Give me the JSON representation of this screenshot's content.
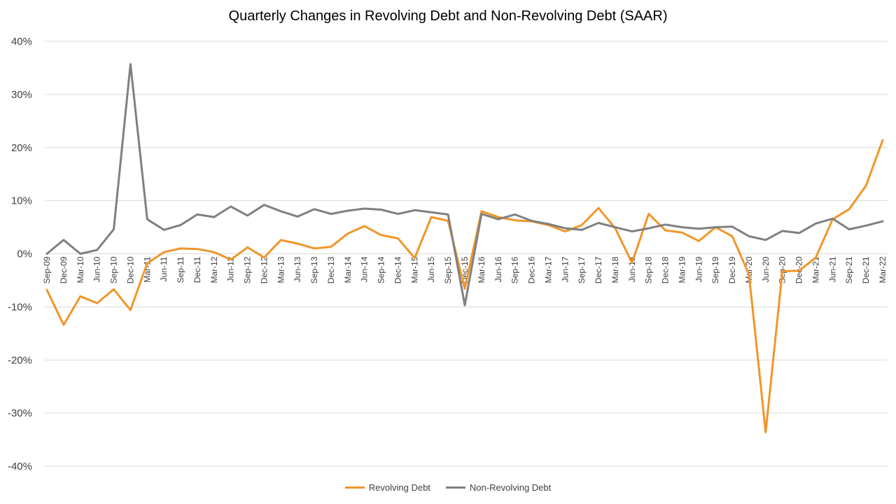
{
  "chart_data": {
    "type": "line",
    "title": "Quarterly Changes in Revolving Debt and Non-Revolving Debt (SAAR)",
    "xlabel": "",
    "ylabel": "",
    "ylim": [
      -0.4,
      0.4
    ],
    "y_ticks": [
      0.4,
      0.3,
      0.2,
      0.1,
      0,
      -0.1,
      -0.2,
      -0.3,
      -0.4
    ],
    "y_tick_labels": [
      "40%",
      "30%",
      "20%",
      "10%",
      "0%",
      "-10%",
      "-20%",
      "-30%",
      "-40%"
    ],
    "grid": true,
    "legend_position": "bottom",
    "categories": [
      "Sep-09",
      "Dec-09",
      "Mar-10",
      "Jun-10",
      "Sep-10",
      "Dec-10",
      "Mar-11",
      "Jun-11",
      "Sep-11",
      "Dec-11",
      "Mar-12",
      "Jun-12",
      "Sep-12",
      "Dec-12",
      "Mar-13",
      "Jun-13",
      "Sep-13",
      "Dec-13",
      "Mar-14",
      "Jun-14",
      "Sep-14",
      "Dec-14",
      "Mar-15",
      "Jun-15",
      "Sep-15",
      "Dec-15",
      "Mar-16",
      "Jun-16",
      "Sep-16",
      "Dec-16",
      "Mar-17",
      "Jun-17",
      "Sep-17",
      "Dec-17",
      "Mar-18",
      "Jun-18",
      "Sep-18",
      "Dec-18",
      "Mar-19",
      "Jun-19",
      "Sep-19",
      "Dec-19",
      "Mar-20",
      "Jun-20",
      "Sep-20",
      "Dec-20",
      "Mar-21",
      "Jun-21",
      "Sep-21",
      "Dec-21",
      "Mar-22"
    ],
    "series": [
      {
        "name": "Revolving Debt",
        "color": "#F0962A",
        "values": [
          -0.068,
          -0.134,
          -0.08,
          -0.093,
          -0.067,
          -0.106,
          -0.018,
          0.003,
          0.01,
          0.009,
          0.003,
          -0.011,
          0.012,
          -0.007,
          0.026,
          0.019,
          0.01,
          0.013,
          0.038,
          0.052,
          0.035,
          0.029,
          -0.008,
          0.069,
          0.062,
          -0.066,
          0.08,
          0.069,
          0.063,
          0.061,
          0.054,
          0.042,
          0.054,
          0.086,
          0.048,
          -0.017,
          0.075,
          0.044,
          0.04,
          0.024,
          0.05,
          0.033,
          -0.039,
          -0.336,
          -0.033,
          -0.032,
          -0.007,
          0.065,
          0.084,
          0.128,
          0.214
        ]
      },
      {
        "name": "Non-Revolving Debt",
        "color": "#808080",
        "values": [
          0.0,
          0.026,
          0.0,
          0.007,
          0.046,
          0.357,
          0.065,
          0.045,
          0.054,
          0.074,
          0.069,
          0.089,
          0.072,
          0.092,
          0.08,
          0.07,
          0.084,
          0.075,
          0.081,
          0.085,
          0.083,
          0.075,
          0.082,
          0.078,
          0.074,
          -0.097,
          0.075,
          0.065,
          0.074,
          0.062,
          0.056,
          0.048,
          0.045,
          0.058,
          0.05,
          0.042,
          0.048,
          0.055,
          0.05,
          0.047,
          0.05,
          0.051,
          0.033,
          0.026,
          0.043,
          0.039,
          0.057,
          0.066,
          0.046,
          0.053,
          0.061
        ]
      }
    ]
  }
}
